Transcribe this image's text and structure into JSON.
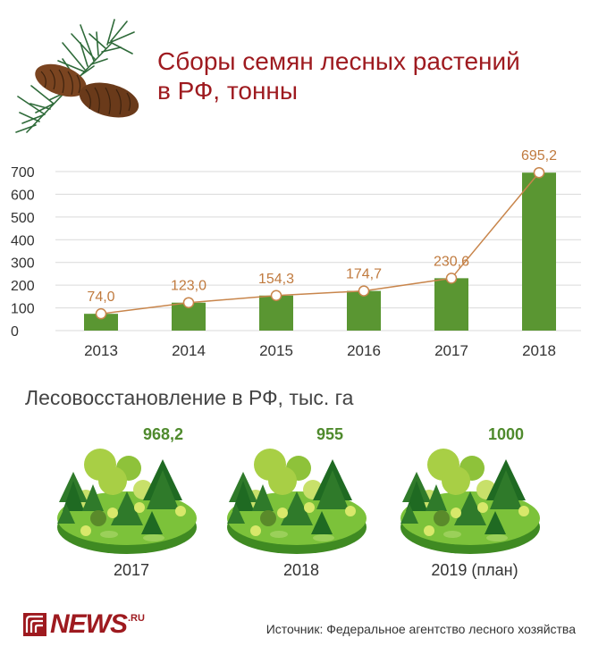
{
  "title": "Сборы семян лесных растений в РФ, тонны",
  "chart_data": [
    {
      "type": "bar",
      "title": "Сборы семян лесных растений в РФ, тонны",
      "categories": [
        "2013",
        "2014",
        "2015",
        "2016",
        "2017",
        "2018"
      ],
      "values": [
        74.0,
        123.0,
        154.3,
        174.7,
        230.6,
        695.2
      ],
      "value_labels": [
        "74,0",
        "123,0",
        "154,3",
        "174,7",
        "230,6",
        "695,2"
      ],
      "yticks": [
        "0",
        "100",
        "200",
        "300",
        "400",
        "500",
        "600",
        "700"
      ],
      "ylim": [
        0,
        700
      ],
      "grid": true,
      "overlay_line": true,
      "colors": {
        "bar": "#5a9632",
        "line": "#c8854b",
        "label": "#c07a3e"
      }
    },
    {
      "type": "pictogram",
      "title": "Лесовосстановление в РФ, тыс. га",
      "categories": [
        "2017",
        "2018",
        "2019 (план)"
      ],
      "values": [
        968.2,
        955,
        1000
      ],
      "value_labels": [
        "968,2",
        "955",
        "1000"
      ]
    }
  ],
  "reforestation": {
    "title": "Лесовосстановление в РФ, тыс. га",
    "items": [
      {
        "year": "2017",
        "value": "968,2"
      },
      {
        "year": "2018",
        "value": "955"
      },
      {
        "year": "2019 (план)",
        "value": "1000"
      }
    ]
  },
  "footer": {
    "logo": "NEWS",
    "logo_suffix": ".RU",
    "source": "Источник: Федеральное агентство лесного хозяйства"
  },
  "icons": [
    "pine-branch-icon",
    "forest-island-icon",
    "news-logo-icon"
  ]
}
